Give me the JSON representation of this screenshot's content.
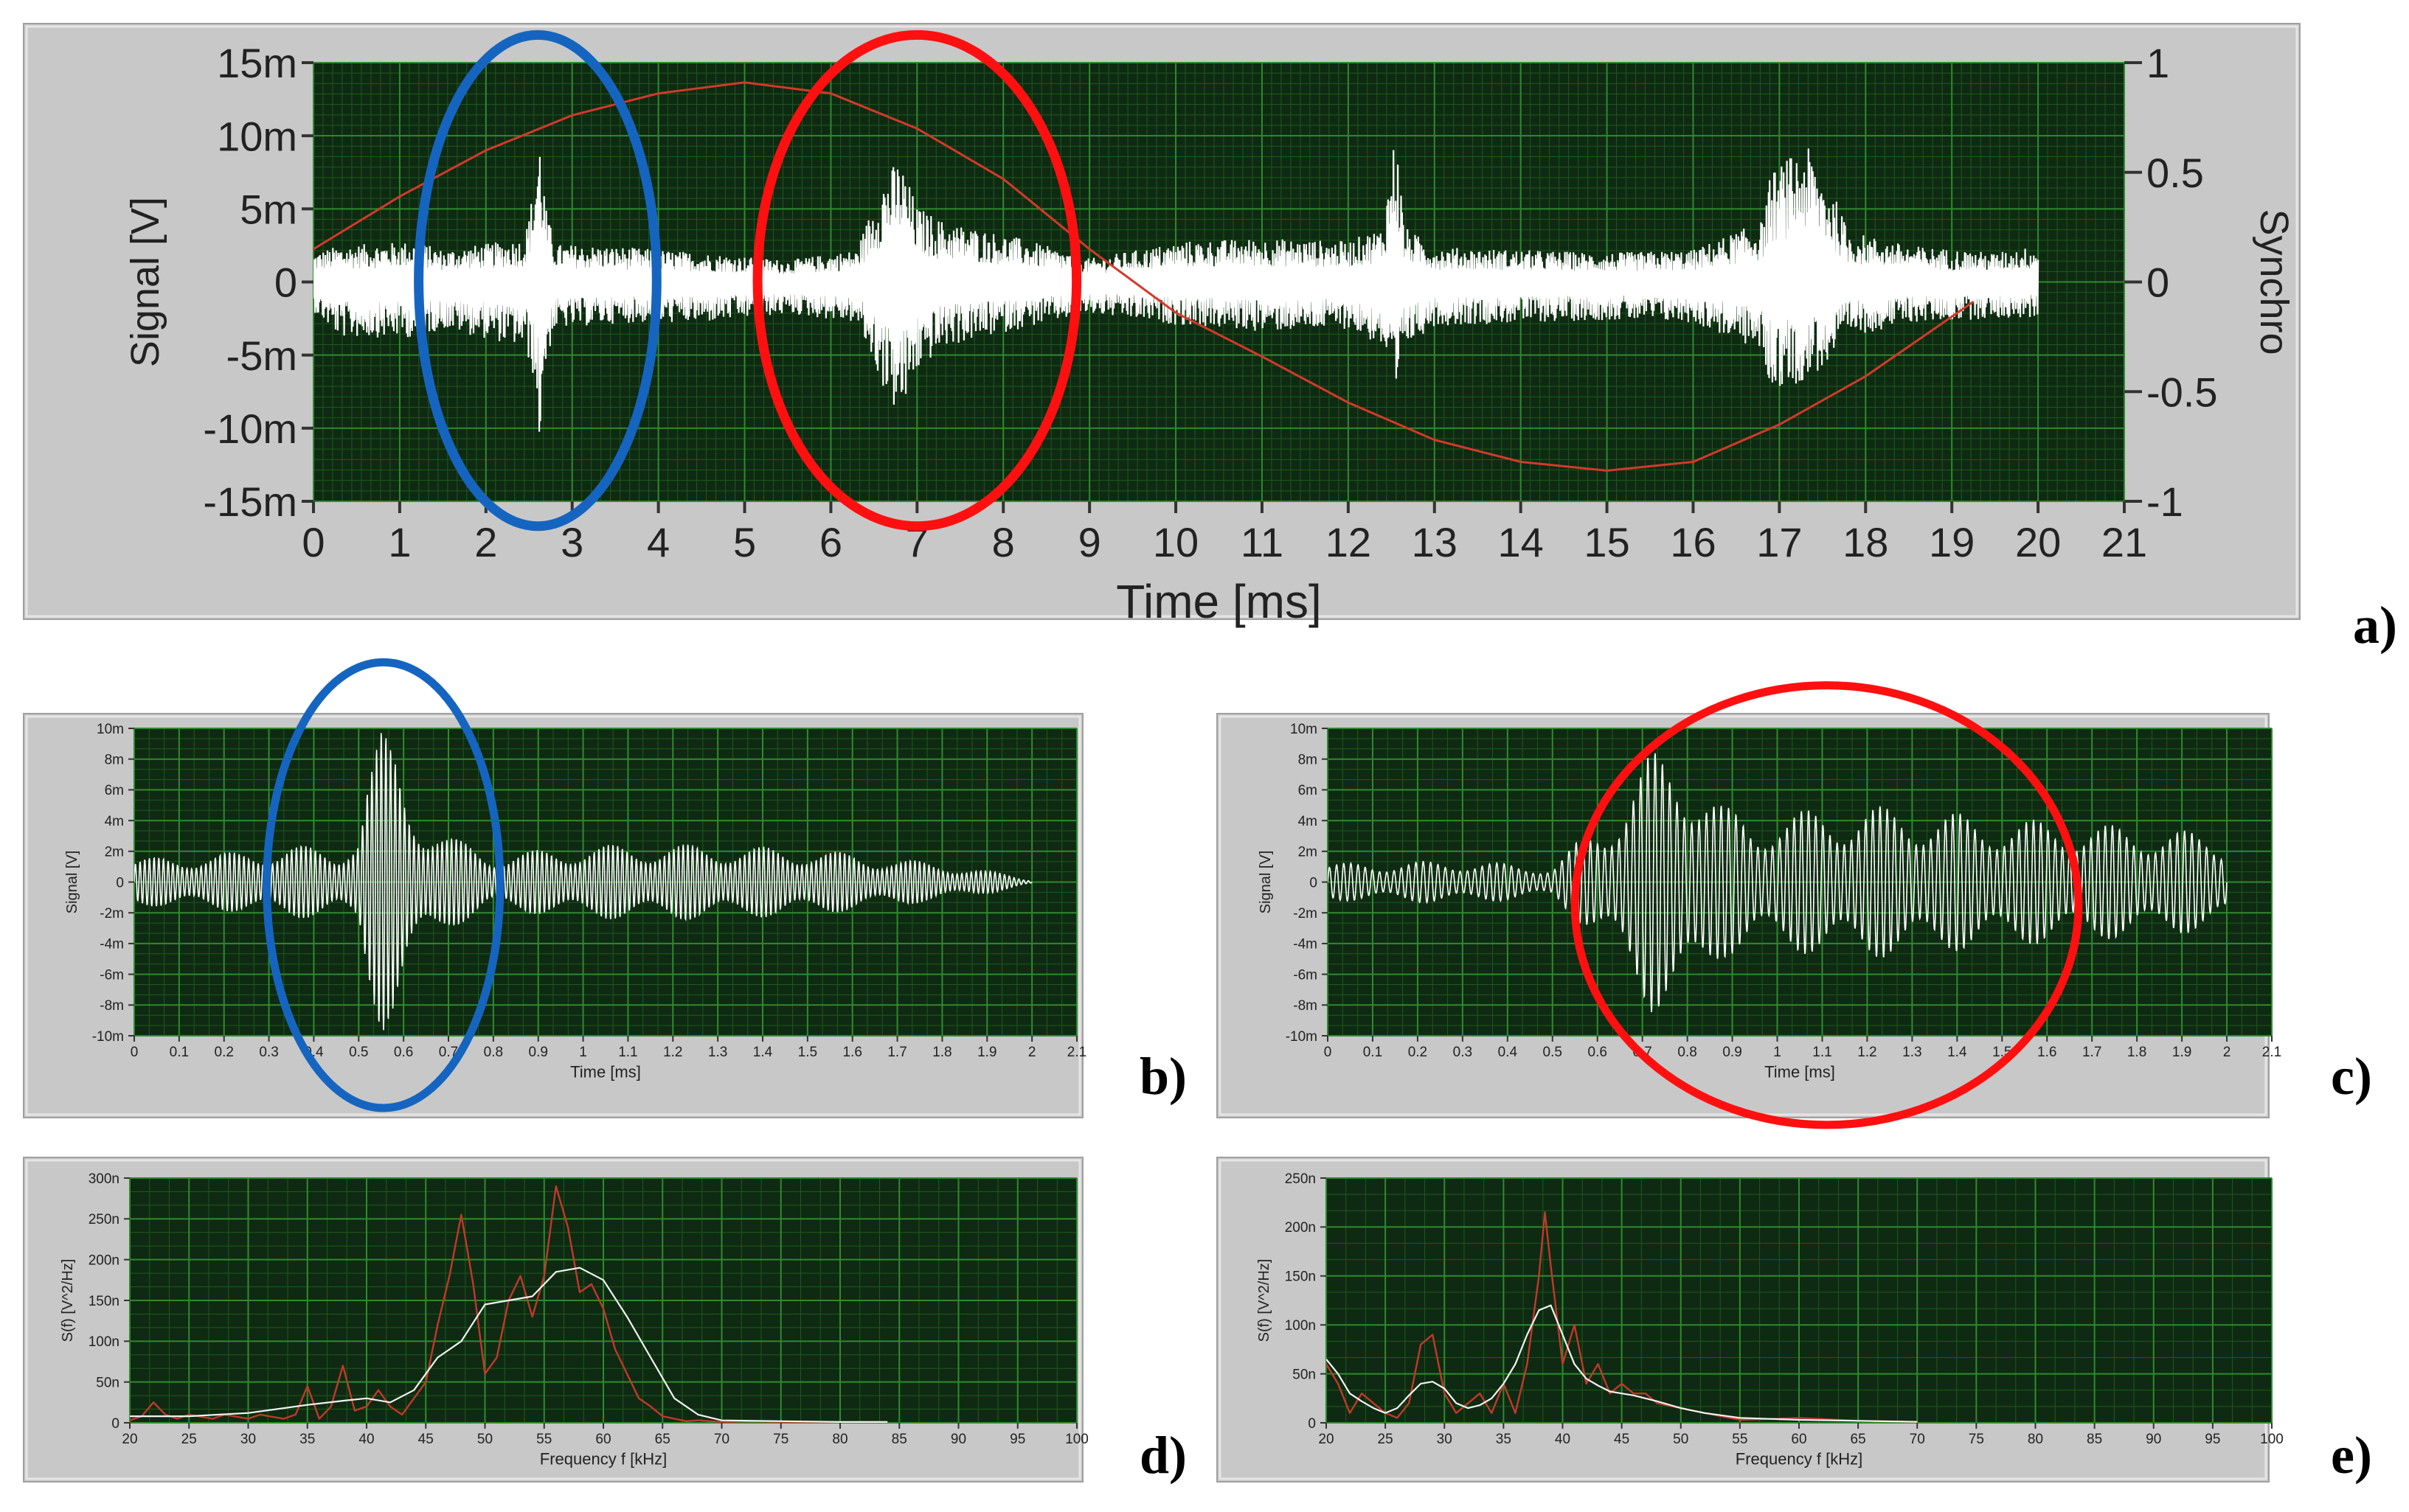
{
  "colors": {
    "panel": "#c8c8c8",
    "plot_bg": "#0f2a12",
    "grid_major": "#2f8a2f",
    "grid_minor": "#1d5a1d",
    "signal": "#ffffff",
    "synchro": "#d23a2a",
    "spectrum_raw": "#c0392b",
    "spectrum_smooth": "#f2f2f2",
    "highlight_blue": "#1565c0",
    "highlight_red": "#ff1010"
  },
  "panel_labels": [
    "a)",
    "b)",
    "c)",
    "d)",
    "e)"
  ],
  "chart_data": [
    {
      "id": "a",
      "type": "line",
      "xlabel": "Time [ms]",
      "ylabel": "Signal [V]",
      "y2label": "Synchro",
      "xlim": [
        0,
        21
      ],
      "ylim": [
        -0.015,
        0.015
      ],
      "y2lim": [
        -1,
        1
      ],
      "x_ticks": [
        "0",
        "1",
        "2",
        "3",
        "4",
        "5",
        "6",
        "7",
        "8",
        "9",
        "10",
        "11",
        "12",
        "13",
        "14",
        "15",
        "16",
        "17",
        "18",
        "19",
        "20",
        "21"
      ],
      "y_ticks": [
        "15m",
        "10m",
        "5m",
        "0",
        "-5m",
        "-10m",
        "-15m"
      ],
      "y2_ticks": [
        "1",
        "0.5",
        "0",
        "-0.5",
        "-1"
      ],
      "grid": true,
      "series": [
        {
          "kind": "noise",
          "x": [
            0.0,
            0.3,
            1.2,
            1.5,
            2.45,
            2.55,
            2.62,
            2.7,
            2.8,
            3.6,
            4.5,
            5.5,
            6.3,
            6.6,
            6.8,
            7.0,
            7.3,
            8.2,
            9.0,
            10.1,
            11.0,
            12.0,
            12.4,
            12.55,
            12.65,
            13.0,
            14.0,
            15.0,
            16.0,
            16.8,
            16.9,
            17.3,
            17.6,
            17.8,
            18.5,
            19.5,
            20.0
          ],
          "envelope_pos": [
            0.002,
            0.0025,
            0.0028,
            0.0022,
            0.003,
            0.0065,
            0.0105,
            0.005,
            0.0026,
            0.0024,
            0.002,
            0.0015,
            0.0022,
            0.0072,
            0.0085,
            0.0052,
            0.0042,
            0.003,
            0.0016,
            0.0028,
            0.003,
            0.0028,
            0.0038,
            0.0108,
            0.0038,
            0.0024,
            0.0022,
            0.002,
            0.0022,
            0.0042,
            0.0075,
            0.0095,
            0.0065,
            0.0035,
            0.0025,
            0.002,
            0.0025
          ],
          "envelope_neg": [
            -0.002,
            -0.0038,
            -0.0038,
            -0.0032,
            -0.0045,
            -0.0065,
            -0.0112,
            -0.0055,
            -0.0032,
            -0.0028,
            -0.0028,
            -0.0022,
            -0.0028,
            -0.0072,
            -0.0095,
            -0.0062,
            -0.0045,
            -0.0032,
            -0.0022,
            -0.003,
            -0.0034,
            -0.0032,
            -0.0045,
            -0.0092,
            -0.0045,
            -0.003,
            -0.0028,
            -0.0026,
            -0.0028,
            -0.0048,
            -0.0075,
            -0.0068,
            -0.0055,
            -0.0038,
            -0.0028,
            -0.0025,
            -0.0025
          ]
        },
        {
          "kind": "synchro",
          "x": [
            0.0,
            1.0,
            2.0,
            3.0,
            4.0,
            5.0,
            6.0,
            7.0,
            8.0,
            9.0,
            10.0,
            11.0,
            12.0,
            13.0,
            14.0,
            15.0,
            16.0,
            17.0,
            18.0,
            19.25
          ],
          "y": [
            0.15,
            0.39,
            0.6,
            0.76,
            0.86,
            0.91,
            0.86,
            0.7,
            0.47,
            0.15,
            -0.14,
            -0.34,
            -0.55,
            -0.72,
            -0.82,
            -0.86,
            -0.82,
            -0.65,
            -0.43,
            -0.09
          ]
        }
      ],
      "annotations": [
        {
          "shape": "ellipse",
          "color": "blue",
          "center": [
            2.6,
            0.0001
          ],
          "radius": [
            1.38,
            0.0168
          ]
        },
        {
          "shape": "ellipse",
          "color": "red",
          "center": [
            7.0,
            0.0001
          ],
          "radius": [
            1.85,
            0.0168
          ]
        }
      ]
    },
    {
      "id": "b",
      "type": "line",
      "xlabel": "Time [ms]",
      "ylabel": "Signal [V]",
      "xlim": [
        0,
        2.1
      ],
      "ylim": [
        -0.01,
        0.01
      ],
      "x_ticks": [
        "0",
        "0.1",
        "0.2",
        "0.3",
        "0.4",
        "0.5",
        "0.6",
        "0.7",
        "0.8",
        "0.9",
        "1",
        "1.1",
        "1.2",
        "1.3",
        "1.4",
        "1.5",
        "1.6",
        "1.7",
        "1.8",
        "1.9",
        "2",
        "2.1"
      ],
      "y_ticks": [
        "10m",
        "8m",
        "6m",
        "4m",
        "2m",
        "0",
        "-2m",
        "-4m",
        "-6m",
        "-8m",
        "-10m"
      ],
      "grid": true,
      "series": [
        {
          "kind": "oscillation",
          "x": [
            0.0,
            0.25,
            0.35,
            0.45,
            0.5,
            0.52,
            0.55,
            0.58,
            0.61,
            0.65,
            0.7,
            0.75,
            0.8,
            1.0,
            1.2,
            1.5,
            1.8,
            1.95,
            2.0
          ],
          "amplitude": [
            0.0015,
            0.002,
            0.0025,
            0.002,
            0.0035,
            0.007,
            0.0098,
            0.009,
            0.0065,
            0.004,
            0.003,
            0.0025,
            0.0018,
            0.0024,
            0.0025,
            0.0022,
            0.0012,
            0.0005,
            0.0001
          ],
          "cycles_per_ms": 95
        }
      ],
      "annotations": [
        {
          "shape": "ellipse",
          "color": "blue",
          "center": [
            0.555,
            -0.0002
          ],
          "radius": [
            0.26,
            0.0145
          ]
        }
      ]
    },
    {
      "id": "c",
      "type": "line",
      "xlabel": "Time [ms]",
      "ylabel": "Signal [V]",
      "xlim": [
        0,
        2.1
      ],
      "ylim": [
        -0.01,
        0.01
      ],
      "x_ticks": [
        "0",
        "0.1",
        "0.2",
        "0.3",
        "0.4",
        "0.5",
        "0.6",
        "0.7",
        "0.8",
        "0.9",
        "1",
        "1.1",
        "1.2",
        "1.3",
        "1.4",
        "1.5",
        "1.6",
        "1.7",
        "1.8",
        "1.9",
        "2",
        "2.1"
      ],
      "y_ticks": [
        "10m",
        "8m",
        "6m",
        "4m",
        "2m",
        "0",
        "-2m",
        "-4m",
        "-6m",
        "-8m",
        "-10m"
      ],
      "grid": true,
      "series": [
        {
          "kind": "oscillation",
          "x": [
            0.0,
            0.3,
            0.5,
            0.55,
            0.62,
            0.68,
            0.72,
            0.78,
            0.82,
            0.88,
            0.95,
            1.0,
            1.1,
            1.2,
            1.3,
            1.4,
            1.5,
            1.6,
            1.7,
            1.8,
            1.9,
            2.0
          ],
          "amplitude": [
            0.0012,
            0.0014,
            0.001,
            0.0025,
            0.004,
            0.007,
            0.0085,
            0.0082,
            0.0075,
            0.005,
            0.004,
            0.0045,
            0.0048,
            0.005,
            0.0048,
            0.0045,
            0.0042,
            0.004,
            0.0038,
            0.0036,
            0.0034,
            0.0028
          ],
          "cycles_per_ms": 62
        }
      ],
      "annotations": [
        {
          "shape": "ellipse",
          "color": "red",
          "center": [
            1.11,
            -0.0015
          ],
          "radius": [
            0.56,
            0.0143
          ]
        }
      ]
    },
    {
      "id": "d",
      "type": "line",
      "xlabel": "Frequency f [kHz]",
      "ylabel": "S(f) [V^2/Hz]",
      "xlim": [
        20,
        100
      ],
      "ylim": [
        0,
        3e-07
      ],
      "x_ticks": [
        "20",
        "25",
        "30",
        "35",
        "40",
        "45",
        "50",
        "55",
        "60",
        "65",
        "70",
        "75",
        "80",
        "85",
        "90",
        "95",
        "100"
      ],
      "y_ticks": [
        "300n",
        "250n",
        "200n",
        "150n",
        "100n",
        "50n",
        "0"
      ],
      "grid": true,
      "series": [
        {
          "kind": "raw",
          "x": [
            20,
            21,
            22,
            23,
            24,
            25,
            27,
            28,
            30,
            31,
            33,
            34,
            35,
            36,
            37,
            38,
            39,
            40,
            41,
            42,
            43,
            44,
            45,
            46,
            47,
            48,
            49,
            50,
            51,
            52,
            53,
            54,
            55,
            56,
            57,
            58,
            59,
            60,
            61,
            62,
            63,
            64,
            65,
            66,
            67,
            68,
            70,
            72,
            75,
            80,
            84
          ],
          "y": [
            3e-09,
            8e-09,
            2.5e-08,
            1e-08,
            5e-09,
            1e-08,
            5e-09,
            1e-08,
            5e-09,
            1e-08,
            5e-09,
            1e-08,
            4.5e-08,
            5e-09,
            2e-08,
            7e-08,
            1.5e-08,
            2e-08,
            4e-08,
            2e-08,
            1e-08,
            3e-08,
            5e-08,
            1.2e-07,
            1.8e-07,
            2.55e-07,
            1.7e-07,
            6e-08,
            8e-08,
            1.5e-07,
            1.8e-07,
            1.3e-07,
            1.8e-07,
            2.9e-07,
            2.4e-07,
            1.6e-07,
            1.7e-07,
            1.4e-07,
            9e-08,
            6e-08,
            3e-08,
            2e-08,
            8e-09,
            5e-09,
            2e-09,
            3e-09,
            1e-09,
            2e-09,
            1e-09,
            1e-09,
            1e-09
          ]
        },
        {
          "kind": "smoothed",
          "x": [
            20,
            25,
            30,
            35,
            38,
            40,
            42,
            44,
            46,
            48,
            50,
            52,
            54,
            56,
            58,
            60,
            62,
            64,
            66,
            68,
            70,
            75,
            80,
            84
          ],
          "y": [
            8e-09,
            8e-09,
            1.2e-08,
            2.2e-08,
            2.7e-08,
            3e-08,
            2.5e-08,
            4e-08,
            8e-08,
            1e-07,
            1.45e-07,
            1.5e-07,
            1.55e-07,
            1.85e-07,
            1.9e-07,
            1.75e-07,
            1.3e-07,
            8e-08,
            3e-08,
            1e-08,
            3e-09,
            2e-09,
            1e-09,
            1e-09
          ]
        }
      ]
    },
    {
      "id": "e",
      "type": "line",
      "xlabel": "Frequency f [kHz]",
      "ylabel": "S(f) [V^2/Hz]",
      "xlim": [
        20,
        100
      ],
      "ylim": [
        0,
        2.5e-07
      ],
      "x_ticks": [
        "20",
        "25",
        "30",
        "35",
        "40",
        "45",
        "50",
        "55",
        "60",
        "65",
        "70",
        "75",
        "80",
        "85",
        "90",
        "95",
        "100"
      ],
      "y_ticks": [
        "250n",
        "200n",
        "150n",
        "100n",
        "50n",
        "0"
      ],
      "grid": true,
      "series": [
        {
          "kind": "raw",
          "x": [
            20,
            21,
            22,
            23,
            24,
            25,
            26,
            27,
            28,
            29,
            30,
            31,
            32,
            33,
            34,
            35,
            36,
            37,
            38,
            38.5,
            39,
            40,
            41,
            42,
            43,
            44,
            45,
            46,
            47,
            48,
            50,
            52,
            55,
            60,
            65,
            70
          ],
          "y": [
            6e-08,
            4e-08,
            1e-08,
            3e-08,
            2e-08,
            1e-08,
            5e-09,
            2e-08,
            8e-08,
            9e-08,
            3e-08,
            1e-08,
            2e-08,
            3e-08,
            1e-08,
            4e-08,
            1e-08,
            6e-08,
            1.5e-07,
            2.15e-07,
            1.6e-07,
            6e-08,
            1e-07,
            4e-08,
            6e-08,
            3e-08,
            4e-08,
            3e-08,
            3e-08,
            2e-08,
            1.5e-08,
            1e-08,
            3e-09,
            5e-09,
            2e-09,
            1e-09
          ]
        },
        {
          "kind": "smoothed",
          "x": [
            20,
            21,
            22,
            23,
            24,
            25,
            26,
            27,
            28,
            29,
            30,
            31,
            32,
            33,
            34,
            35,
            36,
            37,
            38,
            39,
            40,
            41,
            42,
            43,
            44,
            45,
            46,
            48,
            50,
            52,
            55,
            60,
            65,
            70
          ],
          "y": [
            6.5e-08,
            5e-08,
            3e-08,
            2.2e-08,
            1.5e-08,
            1e-08,
            1.5e-08,
            2.8e-08,
            4e-08,
            4.2e-08,
            3.5e-08,
            2e-08,
            1.5e-08,
            1.8e-08,
            2.5e-08,
            4e-08,
            6e-08,
            9e-08,
            1.15e-07,
            1.2e-07,
            9e-08,
            6e-08,
            4.5e-08,
            3.8e-08,
            3.2e-08,
            3e-08,
            2.8e-08,
            2.2e-08,
            1.5e-08,
            1e-08,
            5e-09,
            3e-09,
            2e-09,
            1e-09
          ]
        }
      ]
    }
  ]
}
